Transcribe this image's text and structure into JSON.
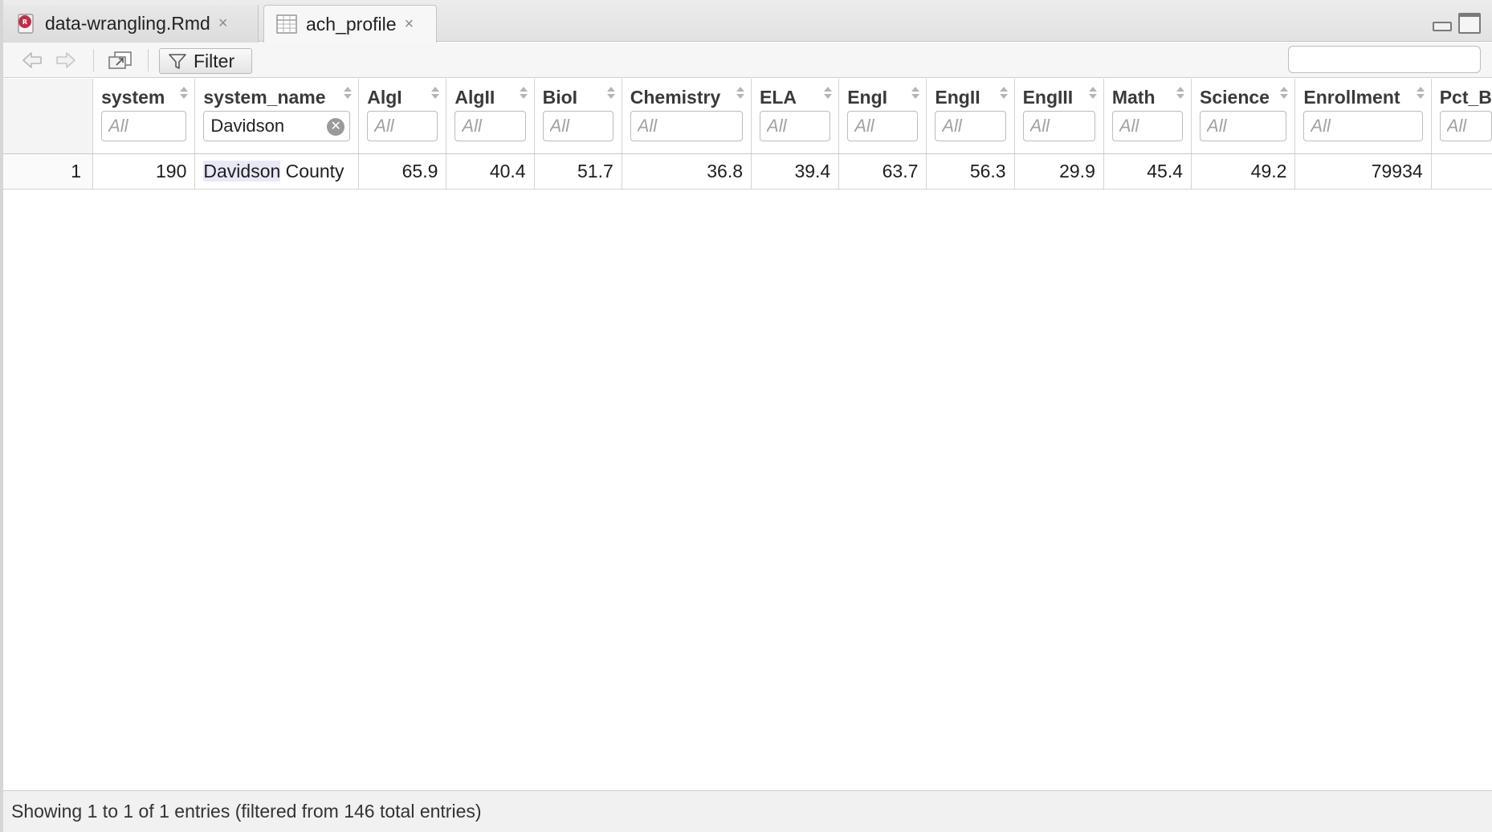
{
  "tabs": [
    {
      "label": "data-wrangling.Rmd",
      "close": "×",
      "icon": "rmd-file-icon"
    },
    {
      "label": "ach_profile",
      "close": "×",
      "icon": "table-icon"
    }
  ],
  "toolbar": {
    "filter_label": "Filter",
    "search_value": ""
  },
  "table": {
    "columns": [
      {
        "key": "system",
        "label": "system",
        "filter_value": "",
        "filter_placeholder": "All"
      },
      {
        "key": "system_name",
        "label": "system_name",
        "filter_value": "Davidson",
        "filter_placeholder": "All"
      },
      {
        "key": "AlgI",
        "label": "AlgI",
        "filter_value": "",
        "filter_placeholder": "All"
      },
      {
        "key": "AlgII",
        "label": "AlgII",
        "filter_value": "",
        "filter_placeholder": "All"
      },
      {
        "key": "BioI",
        "label": "BioI",
        "filter_value": "",
        "filter_placeholder": "All"
      },
      {
        "key": "Chemistry",
        "label": "Chemistry",
        "filter_value": "",
        "filter_placeholder": "All"
      },
      {
        "key": "ELA",
        "label": "ELA",
        "filter_value": "",
        "filter_placeholder": "All"
      },
      {
        "key": "EngI",
        "label": "EngI",
        "filter_value": "",
        "filter_placeholder": "All"
      },
      {
        "key": "EngII",
        "label": "EngII",
        "filter_value": "",
        "filter_placeholder": "All"
      },
      {
        "key": "EngIII",
        "label": "EngIII",
        "filter_value": "",
        "filter_placeholder": "All"
      },
      {
        "key": "Math",
        "label": "Math",
        "filter_value": "",
        "filter_placeholder": "All"
      },
      {
        "key": "Science",
        "label": "Science",
        "filter_value": "",
        "filter_placeholder": "All"
      },
      {
        "key": "Enrollment",
        "label": "Enrollment",
        "filter_value": "",
        "filter_placeholder": "All"
      },
      {
        "key": "Pct_B",
        "label": "Pct_B",
        "filter_value": "",
        "filter_placeholder": "All"
      }
    ],
    "rows": [
      {
        "row_number": "1",
        "cells": [
          "190",
          "County",
          "65.9",
          "40.4",
          "51.7",
          "36.8",
          "39.4",
          "63.7",
          "56.3",
          "29.9",
          "45.4",
          "49.2",
          "79934",
          ""
        ],
        "highlight": "Davidson"
      }
    ]
  },
  "status": {
    "text": "Showing 1 to 1 of 1 entries (filtered from 146 total entries)"
  }
}
